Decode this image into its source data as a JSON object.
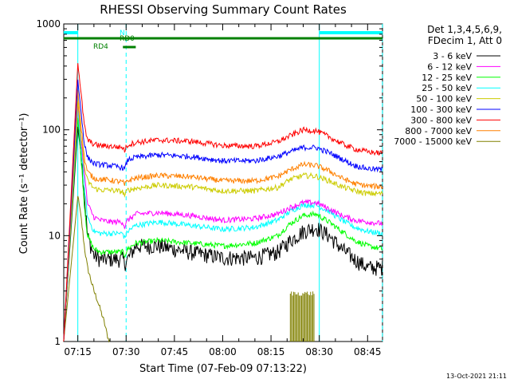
{
  "chart_data": {
    "type": "line",
    "title": "RHESSI Observing Summary Count Rates",
    "xlabel": "Start Time (07-Feb-09 07:13:22)",
    "ylabel": "Count Rate (s⁻¹ detector⁻¹)",
    "y_scale": "log",
    "ylim": [
      1,
      1000
    ],
    "y_ticks": [
      {
        "value": 1,
        "label": "1"
      },
      {
        "value": 10,
        "label": "10"
      },
      {
        "value": 100,
        "label": "100"
      },
      {
        "value": 1000,
        "label": "1000"
      }
    ],
    "x_range_minutes": [
      -4.37,
      94.63
    ],
    "x_ticks": [
      {
        "value": 0,
        "label": "07:15"
      },
      {
        "value": 15,
        "label": "07:30"
      },
      {
        "value": 30,
        "label": "07:45"
      },
      {
        "value": 45,
        "label": "08:00"
      },
      {
        "value": 60,
        "label": "08:15"
      },
      {
        "value": 75,
        "label": "08:30"
      },
      {
        "value": 90,
        "label": "08:45"
      }
    ],
    "legend_header": [
      "Det 1,3,4,5,6,9,",
      "FDecim 1, Att 0"
    ],
    "legend_position": "right",
    "footer_date": "13-Oct-2021 21:11",
    "series": [
      {
        "name": "3 - 6 keV",
        "color": "#000000",
        "x": [
          -4.4,
          0,
          1,
          2,
          3,
          5,
          7,
          10,
          14,
          14.5,
          15.5,
          18,
          25,
          35,
          45,
          55,
          62,
          66,
          70,
          74,
          78,
          82,
          86,
          90,
          94.6
        ],
        "y": [
          0,
          105,
          60,
          25,
          10,
          6.5,
          6,
          6,
          6,
          5.5,
          6,
          8,
          8,
          7,
          6.2,
          6.2,
          7,
          9,
          11,
          12,
          10,
          7.5,
          6,
          5,
          5
        ]
      },
      {
        "name": "6 - 12 keV",
        "color": "#ff00ff",
        "x": [
          -4.4,
          0,
          1,
          2,
          3,
          5,
          7,
          10,
          14,
          14.5,
          15.5,
          18,
          25,
          35,
          45,
          55,
          62,
          66,
          70,
          74,
          78,
          82,
          86,
          90,
          94.6
        ],
        "y": [
          0,
          175,
          80,
          40,
          20,
          15,
          14,
          13.5,
          13.5,
          12,
          14,
          16,
          16.5,
          15.5,
          14,
          14.5,
          16,
          18.5,
          20.5,
          20.5,
          18,
          15.5,
          14,
          13.5,
          13
        ]
      },
      {
        "name": "12 - 25 keV",
        "color": "#00ff00",
        "x": [
          -4.4,
          0,
          1,
          2,
          3,
          5,
          7,
          10,
          14,
          14.5,
          15.5,
          18,
          25,
          35,
          45,
          55,
          62,
          66,
          70,
          74,
          78,
          82,
          86,
          90,
          94.6
        ],
        "y": [
          0,
          135,
          55,
          20,
          10,
          7.5,
          7,
          7,
          7,
          6.5,
          7.5,
          8.5,
          9,
          8.5,
          8,
          8.5,
          10,
          13,
          15.5,
          16,
          13.5,
          11,
          9,
          8,
          7.5
        ]
      },
      {
        "name": "25 - 50 keV",
        "color": "#00ffff",
        "x": [
          -4.4,
          0,
          1,
          2,
          3,
          5,
          7,
          10,
          14,
          14.5,
          15.5,
          18,
          25,
          35,
          45,
          55,
          62,
          66,
          70,
          74,
          78,
          82,
          86,
          90,
          94.6
        ],
        "y": [
          0,
          160,
          70,
          30,
          15,
          11,
          10.5,
          10.5,
          10.5,
          9.5,
          11,
          12.5,
          13.5,
          12.5,
          11.5,
          12,
          14,
          17,
          19.5,
          19.5,
          17,
          14,
          12,
          11,
          10.5
        ]
      },
      {
        "name": "50 - 100 keV",
        "color": "#cccc00",
        "x": [
          -4.4,
          0,
          1,
          2,
          3,
          5,
          7,
          10,
          14,
          14.5,
          15.5,
          18,
          25,
          35,
          45,
          55,
          62,
          66,
          70,
          74,
          78,
          82,
          86,
          90,
          94.6
        ],
        "y": [
          0,
          185,
          90,
          45,
          33,
          28,
          27,
          27,
          26,
          24,
          27,
          28,
          30,
          29,
          26.5,
          26.5,
          28.5,
          34,
          37,
          36.5,
          33,
          29,
          26.5,
          25,
          25
        ]
      },
      {
        "name": "100 - 300 keV",
        "color": "#0000ff",
        "x": [
          -4.4,
          0,
          1,
          2,
          3,
          5,
          7,
          10,
          14,
          14.5,
          15.5,
          18,
          25,
          35,
          45,
          55,
          62,
          66,
          70,
          74,
          78,
          82,
          86,
          90,
          94.6
        ],
        "y": [
          0,
          300,
          150,
          75,
          55,
          48,
          47,
          46,
          44,
          42,
          52,
          55,
          58,
          56,
          51,
          51,
          56,
          62,
          68,
          68,
          61,
          53,
          46,
          43,
          42
        ]
      },
      {
        "name": "300 - 800 keV",
        "color": "#ff0000",
        "x": [
          -4.4,
          0,
          1,
          2,
          3,
          5,
          7,
          10,
          14,
          14.5,
          15.5,
          18,
          25,
          35,
          45,
          55,
          62,
          66,
          70,
          74,
          78,
          82,
          86,
          90,
          94.6
        ],
        "y": [
          0,
          440,
          220,
          110,
          80,
          73,
          71,
          70,
          68,
          64,
          72,
          76,
          80,
          78,
          71,
          70,
          77,
          88,
          100,
          98,
          86,
          74,
          66,
          62,
          60
        ]
      },
      {
        "name": "800 - 7000 keV",
        "color": "#ff8000",
        "x": [
          -4.4,
          0,
          1,
          2,
          3,
          5,
          7,
          10,
          14,
          14.5,
          15.5,
          18,
          25,
          35,
          45,
          55,
          62,
          66,
          70,
          74,
          78,
          82,
          86,
          90,
          94.6
        ],
        "y": [
          0,
          230,
          110,
          55,
          40,
          35,
          34,
          33.5,
          32,
          30,
          33,
          35,
          37,
          36,
          33,
          33,
          36,
          42,
          47,
          46,
          41,
          35,
          31,
          29.5,
          29
        ]
      },
      {
        "name": "7000 - 15000 keV",
        "color": "#808000",
        "x": [
          -4.4,
          0,
          1,
          2,
          3,
          5,
          6,
          7,
          8,
          8.5,
          9,
          9.5,
          10
        ],
        "y": [
          0,
          24,
          15,
          8,
          5,
          3,
          2.5,
          2,
          1.6,
          1.4,
          1.2,
          1.05,
          1
        ]
      }
    ],
    "annotations": [
      {
        "label": "N",
        "color": "#00ffff"
      },
      {
        "label": "RD0",
        "color": "#008000"
      },
      {
        "label": "RD4",
        "color": "#008000"
      }
    ],
    "night_intervals": [
      [
        -4.4,
        0
      ],
      [
        75,
        94.6
      ]
    ],
    "vertical_markers": [
      {
        "x": 0,
        "style": "solid",
        "color": "#00ffff"
      },
      {
        "x": 15,
        "style": "dashed",
        "color": "#00ffff"
      },
      {
        "x": 75,
        "style": "solid",
        "color": "#00ffff"
      },
      {
        "x": 94.6,
        "style": "dashed",
        "color": "#00ffff"
      }
    ],
    "rd0_interval": [
      -4.4,
      94.6
    ],
    "rd4_interval": [
      14,
      18
    ],
    "grid": false
  }
}
